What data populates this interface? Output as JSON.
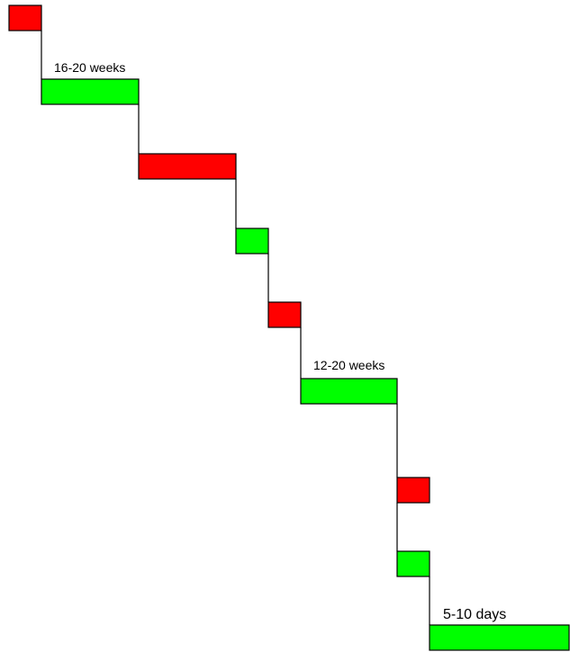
{
  "labels": [
    "16-20 weeks",
    "12-20 weeks",
    "5-10 days"
  ]
}
